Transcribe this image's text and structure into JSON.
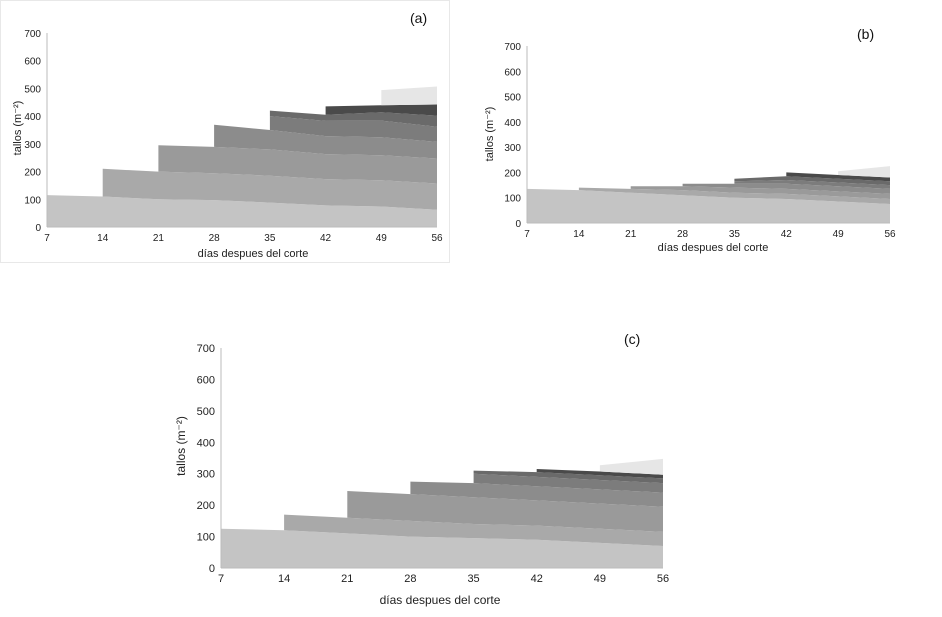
{
  "colors": {
    "cohorts": [
      "#c4c4c4",
      "#a9a9a9",
      "#9a9a9a",
      "#8c8c8c",
      "#7c7c7c",
      "#6a6a6a",
      "#4a4a4a",
      "#e6e6e6"
    ],
    "axis": "#bbbbbb",
    "frame": "#e8e8e8"
  },
  "chart_data": [
    {
      "type": "area",
      "panel_label": "(a)",
      "xlabel": "días despues del corte",
      "ylabel": "tallos  (m⁻²)",
      "x": [
        "7",
        "14",
        "21",
        "28",
        "35",
        "42",
        "49",
        "56"
      ],
      "yticks": [
        "0",
        "100",
        "200",
        "300",
        "400",
        "500",
        "600",
        "700"
      ],
      "ylim": [
        0,
        700
      ],
      "stacked": true,
      "series": [
        {
          "values": [
            115,
            110,
            100,
            97,
            88,
            78,
            74,
            62
          ]
        },
        {
          "values": [
            null,
            100,
            100,
            97,
            97,
            95,
            95,
            95
          ]
        },
        {
          "values": [
            null,
            null,
            95,
            95,
            95,
            90,
            90,
            90
          ]
        },
        {
          "values": [
            null,
            null,
            null,
            80,
            70,
            65,
            65,
            60
          ]
        },
        {
          "values": [
            null,
            null,
            null,
            null,
            50,
            55,
            60,
            55
          ]
        },
        {
          "values": [
            null,
            null,
            null,
            null,
            20,
            22,
            30,
            40
          ]
        },
        {
          "values": [
            null,
            null,
            null,
            null,
            null,
            30,
            25,
            40
          ]
        },
        {
          "values": [
            null,
            null,
            null,
            null,
            null,
            null,
            55,
            65
          ]
        }
      ]
    },
    {
      "type": "area",
      "panel_label": "(b)",
      "xlabel": "días despues del corte",
      "ylabel": "tallos  (m⁻²)",
      "x": [
        "7",
        "14",
        "21",
        "28",
        "35",
        "42",
        "49",
        "56"
      ],
      "yticks": [
        "0",
        "100",
        "200",
        "300",
        "400",
        "500",
        "600",
        "700"
      ],
      "ylim": [
        0,
        700
      ],
      "stacked": true,
      "series": [
        {
          "values": [
            135,
            130,
            120,
            110,
            100,
            95,
            85,
            75
          ]
        },
        {
          "values": [
            null,
            10,
            15,
            20,
            20,
            20,
            20,
            20
          ]
        },
        {
          "values": [
            null,
            null,
            10,
            15,
            20,
            20,
            20,
            20
          ]
        },
        {
          "values": [
            null,
            null,
            null,
            10,
            15,
            20,
            20,
            20
          ]
        },
        {
          "values": [
            null,
            null,
            null,
            null,
            10,
            15,
            15,
            15
          ]
        },
        {
          "values": [
            null,
            null,
            null,
            null,
            10,
            15,
            15,
            15
          ]
        },
        {
          "values": [
            null,
            null,
            null,
            null,
            null,
            15,
            15,
            15
          ]
        },
        {
          "values": [
            null,
            null,
            null,
            null,
            null,
            null,
            15,
            45
          ]
        }
      ]
    },
    {
      "type": "area",
      "panel_label": "(c)",
      "xlabel": "días despues del corte",
      "ylabel": "tallos  (m⁻²)",
      "x": [
        "7",
        "14",
        "21",
        "28",
        "35",
        "42",
        "49",
        "56"
      ],
      "yticks": [
        "0",
        "100",
        "200",
        "300",
        "400",
        "500",
        "600",
        "700"
      ],
      "ylim": [
        0,
        700
      ],
      "stacked": true,
      "series": [
        {
          "values": [
            125,
            120,
            110,
            100,
            95,
            90,
            80,
            70
          ]
        },
        {
          "values": [
            null,
            50,
            50,
            50,
            45,
            45,
            45,
            45
          ]
        },
        {
          "values": [
            null,
            null,
            85,
            85,
            85,
            80,
            80,
            80
          ]
        },
        {
          "values": [
            null,
            null,
            null,
            40,
            45,
            45,
            45,
            45
          ]
        },
        {
          "values": [
            null,
            null,
            null,
            null,
            30,
            30,
            30,
            30
          ]
        },
        {
          "values": [
            null,
            null,
            null,
            null,
            10,
            15,
            15,
            15
          ]
        },
        {
          "values": [
            null,
            null,
            null,
            null,
            null,
            10,
            12,
            12
          ]
        },
        {
          "values": [
            null,
            null,
            null,
            null,
            null,
            null,
            20,
            50
          ]
        }
      ]
    }
  ]
}
